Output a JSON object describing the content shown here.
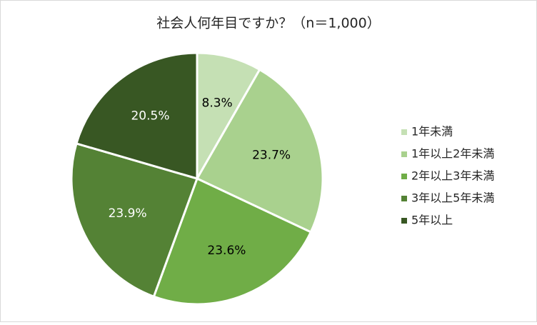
{
  "chart_data": {
    "type": "pie",
    "title": "社会人何年目ですか？（n＝1,000）",
    "categories": [
      "1年未満",
      "1年以上2年未満",
      "2年以上3年未満",
      "3年以上5年未満",
      "5年以上"
    ],
    "values": [
      8.3,
      23.7,
      23.6,
      23.9,
      20.5
    ],
    "value_labels": [
      "8.3%",
      "23.7%",
      "23.6%",
      "23.9%",
      "20.5%"
    ],
    "colors": [
      "#c5e0b4",
      "#a9d18e",
      "#70ad47",
      "#548235",
      "#385723"
    ],
    "value_label_colors": [
      "#000000",
      "#000000",
      "#000000",
      "#ffffff",
      "#ffffff"
    ],
    "legend": "right"
  }
}
